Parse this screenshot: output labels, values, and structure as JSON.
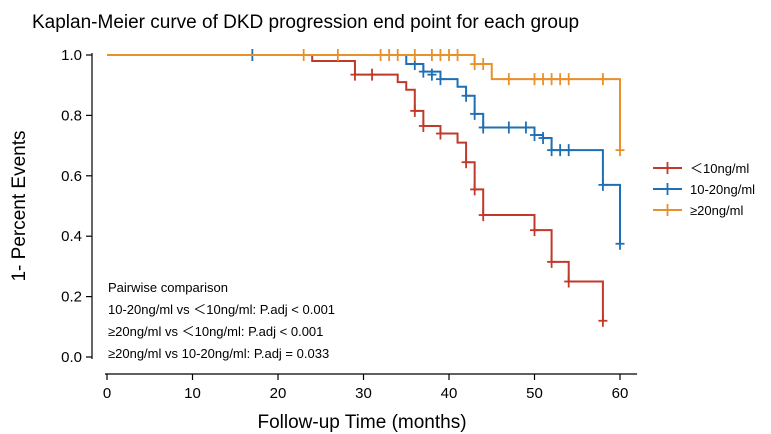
{
  "chart_data": {
    "type": "line",
    "subtype": "kaplan-meier-step",
    "title": "Kaplan-Meier curve of  DKD progression end point for each group",
    "xlabel": "Follow-up Time (months)",
    "ylabel": "1- Percent Events",
    "xlim": [
      0,
      62
    ],
    "ylim": [
      0,
      1.0
    ],
    "xticks": [
      0,
      10,
      20,
      30,
      40,
      50,
      60
    ],
    "yticks": [
      0.0,
      0.2,
      0.4,
      0.6,
      0.8,
      1.0
    ],
    "xtick_labels": [
      "0",
      "10",
      "20",
      "30",
      "40",
      "50",
      "60"
    ],
    "ytick_labels": [
      "0.0",
      "0.2",
      "0.4",
      "0.6",
      "0.8",
      "1.0"
    ],
    "grid": false,
    "legend_position": "right",
    "series": [
      {
        "name": "＜10ng/ml",
        "color": "#c0392b",
        "steps": [
          [
            0,
            1.0
          ],
          [
            24,
            0.98
          ],
          [
            29,
            0.935
          ],
          [
            34,
            0.91
          ],
          [
            35,
            0.885
          ],
          [
            36,
            0.815
          ],
          [
            37,
            0.765
          ],
          [
            39,
            0.74
          ],
          [
            41,
            0.71
          ],
          [
            42,
            0.645
          ],
          [
            43,
            0.555
          ],
          [
            44,
            0.47
          ],
          [
            50,
            0.42
          ],
          [
            52,
            0.315
          ],
          [
            54,
            0.25
          ],
          [
            58,
            0.12
          ]
        ],
        "end": 58,
        "censors": [
          [
            29,
            0.935
          ],
          [
            31,
            0.935
          ],
          [
            36,
            0.815
          ],
          [
            37,
            0.765
          ],
          [
            39,
            0.74
          ],
          [
            42,
            0.645
          ],
          [
            43,
            0.555
          ],
          [
            44,
            0.47
          ],
          [
            50,
            0.42
          ],
          [
            52,
            0.315
          ],
          [
            54,
            0.25
          ],
          [
            58,
            0.12
          ]
        ]
      },
      {
        "name": "10-20ng/ml",
        "color": "#1f6fb4",
        "steps": [
          [
            0,
            1.0
          ],
          [
            35,
            0.97
          ],
          [
            37,
            0.945
          ],
          [
            39,
            0.92
          ],
          [
            41,
            0.895
          ],
          [
            42,
            0.865
          ],
          [
            43,
            0.805
          ],
          [
            44,
            0.76
          ],
          [
            50,
            0.735
          ],
          [
            51,
            0.725
          ],
          [
            52,
            0.685
          ],
          [
            58,
            0.57
          ],
          [
            60,
            0.375
          ]
        ],
        "end": 60,
        "censors": [
          [
            17,
            1.0
          ],
          [
            36,
            0.97
          ],
          [
            37,
            0.945
          ],
          [
            38,
            0.935
          ],
          [
            39,
            0.92
          ],
          [
            42,
            0.865
          ],
          [
            43,
            0.805
          ],
          [
            44,
            0.76
          ],
          [
            47,
            0.76
          ],
          [
            49,
            0.76
          ],
          [
            50,
            0.735
          ],
          [
            51,
            0.725
          ],
          [
            52,
            0.685
          ],
          [
            53,
            0.685
          ],
          [
            54,
            0.685
          ],
          [
            58,
            0.57
          ],
          [
            60,
            0.375
          ]
        ]
      },
      {
        "name": "≥20ng/ml",
        "color": "#e8902a",
        "steps": [
          [
            0,
            1.0
          ],
          [
            43,
            0.97
          ],
          [
            45,
            0.92
          ],
          [
            60,
            0.685
          ]
        ],
        "end": 60,
        "censors": [
          [
            23,
            1.0
          ],
          [
            27,
            1.0
          ],
          [
            32,
            1.0
          ],
          [
            33,
            1.0
          ],
          [
            34,
            1.0
          ],
          [
            36,
            1.0
          ],
          [
            38,
            1.0
          ],
          [
            39,
            1.0
          ],
          [
            40,
            1.0
          ],
          [
            41,
            1.0
          ],
          [
            43,
            0.97
          ],
          [
            44,
            0.97
          ],
          [
            47,
            0.92
          ],
          [
            50,
            0.92
          ],
          [
            51,
            0.92
          ],
          [
            52,
            0.92
          ],
          [
            53,
            0.92
          ],
          [
            54,
            0.92
          ],
          [
            58,
            0.92
          ],
          [
            60,
            0.685
          ]
        ]
      }
    ],
    "annotations": [
      "Pairwise comparison",
      "10-20ng/ml vs ＜10ng/ml: P.adj < 0.001",
      "≥20ng/ml vs ＜10ng/ml: P.adj < 0.001",
      "≥20ng/ml vs 10-20ng/ml: P.adj = 0.033"
    ]
  }
}
